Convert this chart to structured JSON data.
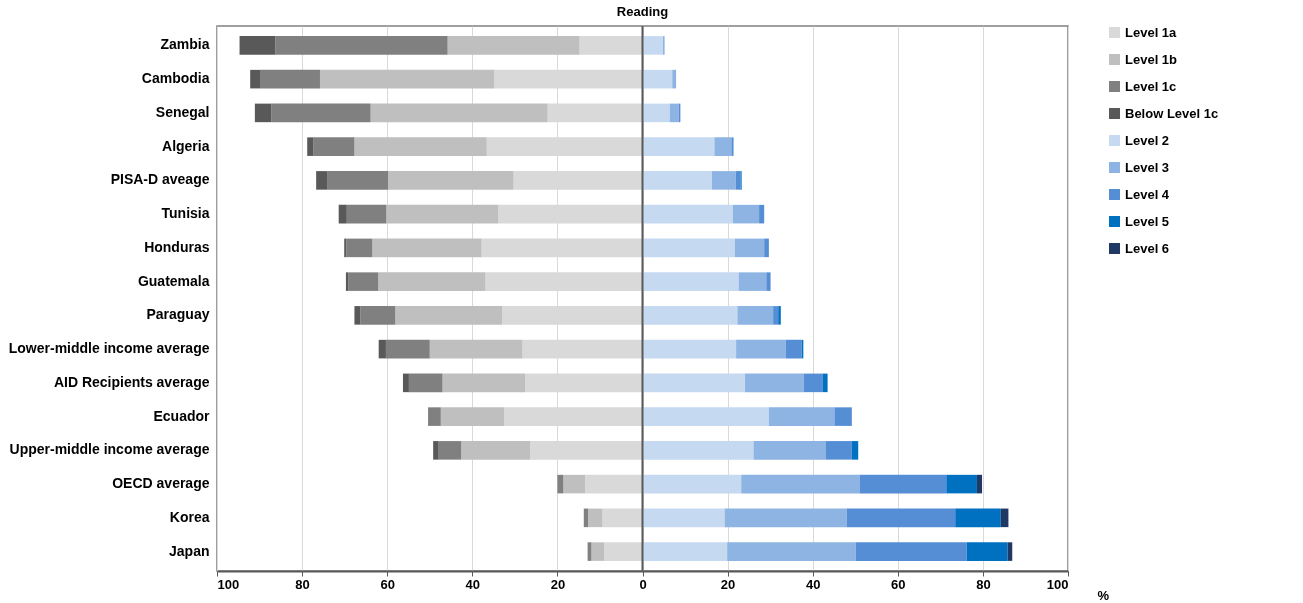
{
  "chart_data": {
    "type": "bar",
    "orientation": "horizontal",
    "stacked": true,
    "title": "Reading",
    "xlabel": "%",
    "categories": [
      "Zambia",
      "Cambodia",
      "Senegal",
      "Algeria",
      "PISA-D aveage",
      "Tunisia",
      "Honduras",
      "Guatemala",
      "Paraguay",
      "Lower-middle income average",
      "AID Recipients average",
      "Ecuador",
      "Upper-middle income average",
      "OECD average",
      "Korea",
      "Japan"
    ],
    "series": [
      {
        "name": "Level 1a",
        "color": "#d9d9d9",
        "values": [
          -14.8,
          -34.8,
          -22.3,
          -36.6,
          -30.3,
          -33.9,
          -37.8,
          -36.9,
          -33.0,
          -28.2,
          -27.6,
          -32.5,
          -26.4,
          -13.5,
          -9.4,
          -9.0
        ]
      },
      {
        "name": "Level 1b",
        "color": "#bfbfbf",
        "values": [
          -31.0,
          -41.0,
          -41.6,
          -31.1,
          -29.5,
          -26.3,
          -25.7,
          -25.2,
          -25.1,
          -21.8,
          -19.4,
          -14.9,
          -16.2,
          -5.1,
          -3.4,
          -3.0
        ]
      },
      {
        "name": "Level 1c",
        "color": "#808080",
        "values": [
          -40.5,
          -14.1,
          -23.3,
          -9.7,
          -14.2,
          -9.3,
          -6.1,
          -7.0,
          -8.2,
          -10.3,
          -7.9,
          -3.0,
          -5.3,
          -1.4,
          -1.0,
          -0.9
        ]
      },
      {
        "name": "Below Level 1c",
        "color": "#595959",
        "values": [
          -8.4,
          -2.3,
          -3.9,
          -1.4,
          -2.7,
          -1.9,
          -0.5,
          -0.6,
          -1.4,
          -1.7,
          -1.4,
          null,
          -1.3,
          null,
          null,
          null
        ]
      },
      {
        "name": "Level 2",
        "color": "#c5d9f1",
        "values": [
          4.8,
          7.0,
          6.4,
          16.9,
          16.3,
          21.2,
          21.7,
          22.6,
          22.3,
          22.0,
          24.1,
          29.7,
          26.1,
          23.2,
          19.3,
          19.9
        ]
      },
      {
        "name": "Level 3",
        "color": "#8db4e2",
        "values": [
          0.4,
          0.9,
          2.1,
          4.0,
          5.6,
          6.2,
          6.9,
          6.5,
          8.4,
          11.7,
          13.8,
          15.4,
          16.9,
          27.8,
          28.7,
          30.2
        ]
      },
      {
        "name": "Level 4",
        "color": "#558ed5",
        "values": [
          null,
          null,
          0.4,
          0.5,
          1.2,
          1.2,
          1.1,
          1.0,
          1.2,
          3.7,
          4.5,
          4.1,
          6.2,
          20.4,
          25.5,
          26.1
        ]
      },
      {
        "name": "Level 5",
        "color": "#0070c0",
        "values": [
          null,
          null,
          null,
          null,
          0.2,
          null,
          null,
          null,
          0.6,
          0.4,
          1.1,
          null,
          1.5,
          7.2,
          10.7,
          9.6
        ]
      },
      {
        "name": "Level 6",
        "color": "#1f3864",
        "values": [
          null,
          null,
          null,
          null,
          null,
          null,
          null,
          null,
          null,
          null,
          null,
          null,
          null,
          1.2,
          1.8,
          1.1
        ]
      }
    ],
    "xlim": [
      -100,
      100
    ],
    "xticks": [
      {
        "value": -100,
        "label": "100"
      },
      {
        "value": -80,
        "label": "80"
      },
      {
        "value": -60,
        "label": "60"
      },
      {
        "value": -40,
        "label": "40"
      },
      {
        "value": -20,
        "label": "20"
      },
      0,
      20,
      40,
      60,
      80,
      100
    ],
    "ref_lines": [
      {
        "axis": "x",
        "value": 0,
        "color": "#595959"
      }
    ],
    "grid": "x",
    "legend": "top right"
  }
}
